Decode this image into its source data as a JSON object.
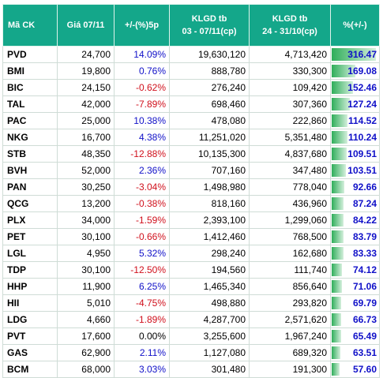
{
  "headers": {
    "ticker": "Mã CK",
    "price": "Giá 07/11",
    "change": "+/-(%)5p",
    "vol_recent_l1": "KLGD tb",
    "vol_recent_l2": "03 - 07/11(cp)",
    "vol_prev_l1": "KLGD tb",
    "vol_prev_l2": "24 - 31/10(cp)",
    "pct": "%(+/-)"
  },
  "colors": {
    "header_bg": "#14a78a",
    "positive": "#1010c8",
    "negative": "#d0101c",
    "bar": "#2fae5a"
  },
  "rows": [
    {
      "ticker": "PVD",
      "price": "24,700",
      "change": "14.09%",
      "vol_recent": "19,630,120",
      "vol_prev": "4,713,420",
      "pct": "316.47"
    },
    {
      "ticker": "BMI",
      "price": "19,800",
      "change": "0.76%",
      "vol_recent": "888,780",
      "vol_prev": "330,300",
      "pct": "169.08"
    },
    {
      "ticker": "BIC",
      "price": "24,150",
      "change": "-0.62%",
      "vol_recent": "276,240",
      "vol_prev": "109,420",
      "pct": "152.46"
    },
    {
      "ticker": "TAL",
      "price": "42,000",
      "change": "-7.89%",
      "vol_recent": "698,460",
      "vol_prev": "307,360",
      "pct": "127.24"
    },
    {
      "ticker": "PAC",
      "price": "25,000",
      "change": "10.38%",
      "vol_recent": "478,080",
      "vol_prev": "222,860",
      "pct": "114.52"
    },
    {
      "ticker": "NKG",
      "price": "16,700",
      "change": "4.38%",
      "vol_recent": "11,251,020",
      "vol_prev": "5,351,480",
      "pct": "110.24"
    },
    {
      "ticker": "STB",
      "price": "48,350",
      "change": "-12.88%",
      "vol_recent": "10,135,300",
      "vol_prev": "4,837,680",
      "pct": "109.51"
    },
    {
      "ticker": "BVH",
      "price": "52,000",
      "change": "2.36%",
      "vol_recent": "707,160",
      "vol_prev": "347,480",
      "pct": "103.51"
    },
    {
      "ticker": "PAN",
      "price": "30,250",
      "change": "-3.04%",
      "vol_recent": "1,498,980",
      "vol_prev": "778,040",
      "pct": "92.66"
    },
    {
      "ticker": "QCG",
      "price": "13,200",
      "change": "-0.38%",
      "vol_recent": "818,160",
      "vol_prev": "436,960",
      "pct": "87.24"
    },
    {
      "ticker": "PLX",
      "price": "34,000",
      "change": "-1.59%",
      "vol_recent": "2,393,100",
      "vol_prev": "1,299,060",
      "pct": "84.22"
    },
    {
      "ticker": "PET",
      "price": "30,100",
      "change": "-0.66%",
      "vol_recent": "1,412,460",
      "vol_prev": "768,500",
      "pct": "83.79"
    },
    {
      "ticker": "LGL",
      "price": "4,950",
      "change": "5.32%",
      "vol_recent": "298,240",
      "vol_prev": "162,680",
      "pct": "83.33"
    },
    {
      "ticker": "TDP",
      "price": "30,100",
      "change": "-12.50%",
      "vol_recent": "194,560",
      "vol_prev": "111,740",
      "pct": "74.12"
    },
    {
      "ticker": "HHP",
      "price": "11,900",
      "change": "6.25%",
      "vol_recent": "1,465,340",
      "vol_prev": "856,640",
      "pct": "71.06"
    },
    {
      "ticker": "HII",
      "price": "5,010",
      "change": "-4.75%",
      "vol_recent": "498,880",
      "vol_prev": "293,820",
      "pct": "69.79"
    },
    {
      "ticker": "LDG",
      "price": "4,660",
      "change": "-1.89%",
      "vol_recent": "4,287,700",
      "vol_prev": "2,571,620",
      "pct": "66.73"
    },
    {
      "ticker": "PVT",
      "price": "17,600",
      "change": "0.00%",
      "vol_recent": "3,255,600",
      "vol_prev": "1,967,240",
      "pct": "65.49"
    },
    {
      "ticker": "GAS",
      "price": "62,900",
      "change": "2.11%",
      "vol_recent": "1,127,080",
      "vol_prev": "689,320",
      "pct": "63.51"
    },
    {
      "ticker": "BCM",
      "price": "68,000",
      "change": "3.03%",
      "vol_recent": "301,480",
      "vol_prev": "191,300",
      "pct": "57.60"
    }
  ]
}
